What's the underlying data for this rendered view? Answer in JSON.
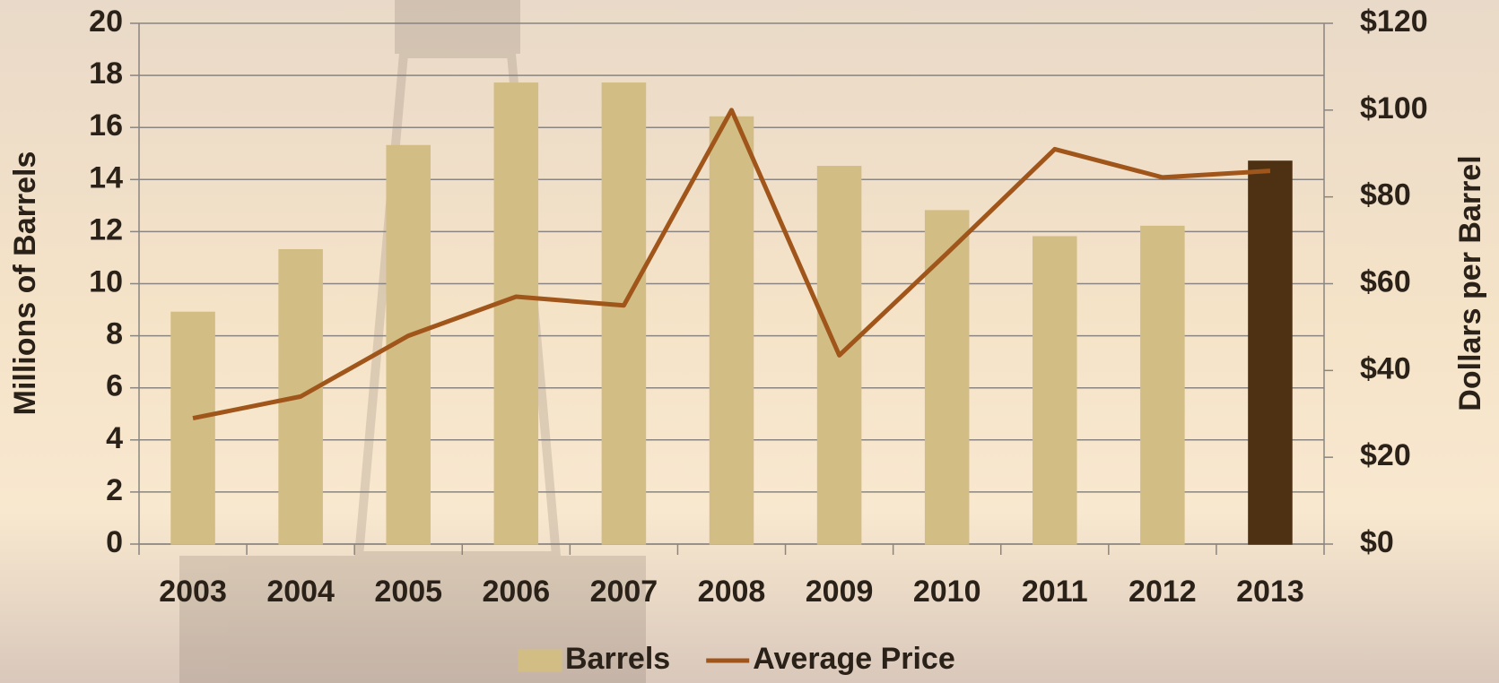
{
  "chart_data": {
    "type": "bar",
    "categories": [
      "2003",
      "2004",
      "2005",
      "2006",
      "2007",
      "2008",
      "2009",
      "2010",
      "2011",
      "2012",
      "2013"
    ],
    "series": [
      {
        "name": "Barrels",
        "type": "bar",
        "color": "#d2bd84",
        "colors": [
          "#d2bd84",
          "#d2bd84",
          "#d2bd84",
          "#d2bd84",
          "#d2bd84",
          "#d2bd84",
          "#d2bd84",
          "#d2bd84",
          "#d2bd84",
          "#d2bd84",
          "#4e3012"
        ],
        "values": [
          8.9,
          11.3,
          15.3,
          17.7,
          17.7,
          16.4,
          14.5,
          12.8,
          11.8,
          12.2,
          14.7
        ]
      },
      {
        "name": "Average Price",
        "type": "line",
        "axis": "y2",
        "color": "#a0561a",
        "values": [
          29,
          34,
          48,
          57,
          55,
          100,
          43.5,
          67,
          91,
          84.5,
          86
        ]
      }
    ],
    "ylabel": "Millions of Barrels",
    "y2label": "Dollars per Barrel",
    "ylim": [
      0,
      20
    ],
    "yticks": [
      0,
      2,
      4,
      6,
      8,
      10,
      12,
      14,
      16,
      18,
      20
    ],
    "y2lim": [
      0,
      120
    ],
    "y2ticks": [
      {
        "value": 0,
        "label": "$0"
      },
      {
        "value": 20,
        "label": "$20"
      },
      {
        "value": 40,
        "label": "$40"
      },
      {
        "value": 60,
        "label": "$60"
      },
      {
        "value": 80,
        "label": "$80"
      },
      {
        "value": 100,
        "label": "$100"
      },
      {
        "value": 120,
        "label": "$120"
      }
    ],
    "grid": true,
    "legend": "bottom"
  }
}
